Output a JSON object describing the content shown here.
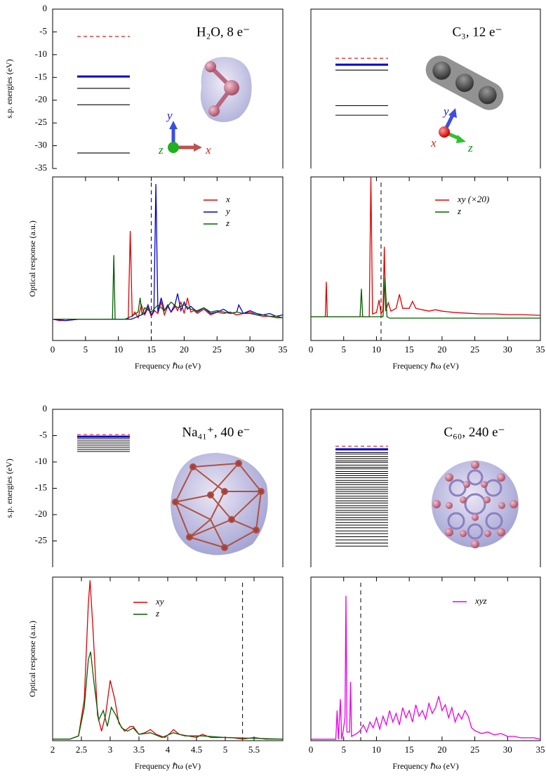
{
  "chart_data": [
    {
      "type": "levels",
      "title": "H₂O, 8 e⁻",
      "ylabel": "s.p. energies (eV)",
      "ylim": [
        -35,
        0
      ],
      "yticks": [
        0,
        -5,
        -10,
        -15,
        -20,
        -25,
        -30,
        -35
      ],
      "orientation_labels": [
        "y",
        "z",
        "x"
      ],
      "series": [
        {
          "style": "dashed",
          "color": "#e00000",
          "values": [
            -6
          ]
        },
        {
          "style": "thick",
          "color": "#0000d0",
          "values": [
            -14.8
          ]
        },
        {
          "style": "thin",
          "color": "#000000",
          "values": [
            -17.4,
            -21,
            -31.6
          ]
        }
      ]
    },
    {
      "type": "line",
      "xlabel": "Frequency ℏω (eV)",
      "ylabel": "Optical response (a.u.)",
      "xlim": [
        0,
        35
      ],
      "xticks": [
        0,
        5,
        10,
        15,
        20,
        25,
        30,
        35
      ],
      "ylim": [
        -0.15,
        1.0
      ],
      "vline": 15,
      "series": [
        {
          "name": "x",
          "color": "#e00000",
          "x": [
            0,
            1,
            2,
            4,
            6,
            8,
            10,
            11.5,
            11.8,
            12.1,
            12.5,
            13,
            13.5,
            14,
            14.5,
            15,
            15.5,
            16,
            16.5,
            17,
            17.5,
            18,
            18.5,
            19,
            19.5,
            20,
            20.5,
            21,
            21.5,
            22,
            23,
            24,
            25,
            26,
            27,
            28,
            29,
            30,
            31,
            32,
            33,
            34,
            35
          ],
          "values": [
            0,
            -0.01,
            -0.01,
            0,
            0,
            0,
            0,
            0,
            0.62,
            0.02,
            0.05,
            0.01,
            0.1,
            0.03,
            0.08,
            0.02,
            0.06,
            0.04,
            0.12,
            0.03,
            0.09,
            0.05,
            0.1,
            0.06,
            0.12,
            0.04,
            0.15,
            0.05,
            0.06,
            0.04,
            0.07,
            0.03,
            0.05,
            0.04,
            0.05,
            0.03,
            0.04,
            0.05,
            0.03,
            0.02,
            0.02,
            0.01,
            0.01
          ]
        },
        {
          "name": "y",
          "color": "#0000d0",
          "x": [
            0,
            2,
            4,
            6,
            8,
            10,
            12,
            13,
            14,
            14.5,
            15,
            15.4,
            15.7,
            16,
            16.5,
            17,
            17.5,
            18,
            18.5,
            19,
            19.5,
            20,
            20.5,
            21,
            22,
            23,
            24,
            25,
            26,
            27,
            28,
            28.3,
            29,
            30,
            31,
            32,
            33,
            34,
            35
          ],
          "values": [
            0,
            -0.01,
            0,
            0,
            0,
            0,
            0,
            0.02,
            0.04,
            0.1,
            0.03,
            0.06,
            0.95,
            0.05,
            0.15,
            0.06,
            0.1,
            0.05,
            0.08,
            0.18,
            0.06,
            0.12,
            0.07,
            0.09,
            0.05,
            0.08,
            0.04,
            0.05,
            0.07,
            0.04,
            0.05,
            0.1,
            0.04,
            0.06,
            0.04,
            0.03,
            0.04,
            0.02,
            0.03
          ]
        },
        {
          "name": "z",
          "color": "#006000",
          "x": [
            0,
            2,
            4,
            6,
            8,
            9.1,
            9.3,
            9.5,
            11,
            12,
            13,
            13.3,
            13.6,
            14,
            15,
            16,
            17,
            18,
            19,
            20,
            21,
            22,
            23,
            24,
            25,
            26,
            27,
            28,
            29,
            30,
            31,
            32,
            33,
            34,
            35
          ],
          "values": [
            0,
            0,
            0,
            0,
            0,
            0,
            0.45,
            0,
            0,
            0.02,
            0.05,
            0.15,
            0.03,
            0.08,
            0.05,
            0.1,
            0.06,
            0.12,
            0.08,
            0.1,
            0.07,
            0.06,
            0.08,
            0.05,
            0.06,
            0.05,
            0.04,
            0.05,
            0.04,
            0.04,
            0.03,
            0.03,
            0.02,
            0.02,
            0.01
          ]
        }
      ]
    },
    {
      "type": "levels",
      "title": "C₃, 12 e⁻",
      "ylim": [
        -35,
        0
      ],
      "orientation_labels": [
        "y",
        "x",
        "z"
      ],
      "series": [
        {
          "style": "dashed",
          "color": "#e00000",
          "values": [
            -10.8
          ]
        },
        {
          "style": "thick",
          "color": "#0000d0",
          "values": [
            -12.2
          ]
        },
        {
          "style": "thin",
          "color": "#000000",
          "values": [
            -13.4,
            -21.2,
            -23.3
          ]
        }
      ]
    },
    {
      "type": "line",
      "xlabel": "Frequency ℏω (eV)",
      "xlim": [
        0,
        35
      ],
      "xticks": [
        0,
        5,
        10,
        15,
        20,
        25,
        30,
        35
      ],
      "ylim": [
        -0.17,
        1.0
      ],
      "vline": 10.7,
      "series": [
        {
          "name": "xy (×20)",
          "color": "#e00000",
          "x": [
            0,
            1,
            2,
            2.2,
            2.35,
            2.5,
            4,
            6,
            8,
            8.9,
            9.15,
            9.4,
            10,
            10.4,
            10.7,
            11,
            11.2,
            11.4,
            11.8,
            12.2,
            13,
            13.5,
            14,
            15,
            15.5,
            16,
            17,
            18,
            19,
            20,
            22,
            24,
            26,
            28,
            30,
            32,
            35
          ],
          "values": [
            0,
            0,
            0,
            0,
            0.25,
            0,
            0,
            0,
            0,
            0,
            1.0,
            0.02,
            0.03,
            0.12,
            0.02,
            0.05,
            0.5,
            0.04,
            0.1,
            0.04,
            0.06,
            0.16,
            0.06,
            0.06,
            0.11,
            0.06,
            0.05,
            0.04,
            0.05,
            0.04,
            0.03,
            0.025,
            0.02,
            0.02,
            0.015,
            0.015,
            0.01
          ]
        },
        {
          "name": "z",
          "color": "#006000",
          "x": [
            0,
            7,
            7.5,
            7.7,
            7.9,
            10,
            11,
            11.3,
            11.6,
            12,
            35
          ],
          "values": [
            0,
            0,
            0,
            0.2,
            0,
            0,
            0,
            0.28,
            0,
            -0.01,
            -0.01
          ]
        }
      ]
    },
    {
      "type": "levels",
      "title": "Na₄₁⁺, 40 e⁻",
      "ylabel": "s.p. energies (eV)",
      "ylim": [
        -30,
        0
      ],
      "yticks": [
        0,
        -5,
        -10,
        -15,
        -20,
        -25
      ],
      "series": [
        {
          "style": "dashed",
          "color": "#e00000",
          "values": [
            -4.8
          ]
        },
        {
          "style": "thick",
          "color": "#0000d0",
          "values": [
            -5.2
          ]
        },
        {
          "style": "thin",
          "color": "#000000",
          "values": [
            -5.6,
            -6.0,
            -6.4,
            -6.8,
            -7.2,
            -7.6,
            -8.0
          ]
        }
      ]
    },
    {
      "type": "line",
      "xlabel": "Frequency ℏω (eV)",
      "ylabel": "Optical response (a.u.)",
      "xlim": [
        2,
        6
      ],
      "xticks": [
        2,
        2.5,
        3,
        3.5,
        4,
        4.5,
        5,
        5.5
      ],
      "ylim": [
        -0.01,
        1.02
      ],
      "vline": 5.3,
      "series": [
        {
          "name": "xy",
          "color": "#e00000",
          "x": [
            2,
            2.3,
            2.45,
            2.55,
            2.62,
            2.65,
            2.7,
            2.78,
            2.85,
            2.92,
            3.0,
            3.08,
            3.15,
            3.25,
            3.35,
            3.4,
            3.5,
            3.6,
            3.7,
            3.8,
            3.95,
            4.05,
            4.1,
            4.2,
            4.35,
            4.5,
            4.6,
            4.75,
            4.9,
            5.1,
            5.3,
            5.5,
            5.7,
            6
          ],
          "values": [
            0,
            0,
            0.02,
            0.25,
            0.85,
            1.0,
            0.7,
            0.15,
            0.05,
            0.15,
            0.37,
            0.25,
            0.1,
            0.05,
            0.08,
            0.08,
            0.03,
            0.04,
            0.06,
            0.03,
            0.01,
            0.04,
            0.06,
            0.03,
            0.02,
            0.01,
            0.03,
            0.01,
            0.01,
            0.01,
            0,
            0.01,
            0,
            0
          ]
        },
        {
          "name": "z",
          "color": "#006000",
          "x": [
            2,
            2.3,
            2.45,
            2.55,
            2.62,
            2.66,
            2.72,
            2.8,
            2.88,
            2.95,
            3.02,
            3.1,
            3.2,
            3.3,
            3.4,
            3.5,
            3.7,
            3.9,
            4.1,
            4.3,
            4.6,
            5,
            6
          ],
          "values": [
            0,
            0,
            0.02,
            0.2,
            0.5,
            0.55,
            0.35,
            0.12,
            0.18,
            0.08,
            0.2,
            0.15,
            0.07,
            0.05,
            0.07,
            0.03,
            0.04,
            0.01,
            0.04,
            0.02,
            0.02,
            0.01,
            0
          ]
        }
      ]
    },
    {
      "type": "levels",
      "title": "C₆₀, 240 e⁻",
      "ylim": [
        -30,
        0
      ],
      "series": [
        {
          "style": "dashed",
          "color": "#e00000",
          "values": [
            -7.0
          ]
        },
        {
          "style": "thick",
          "color": "#0000d0",
          "values": [
            -7.6
          ]
        },
        {
          "style": "thin",
          "color": "#000000",
          "values": [
            -8.2,
            -8.5,
            -9.0,
            -9.4,
            -9.8,
            -10.1,
            -10.6,
            -11.0,
            -11.3,
            -11.8,
            -12.2,
            -12.6,
            -13.0,
            -13.5,
            -13.9,
            -14.3,
            -14.8,
            -15.2,
            -15.6,
            -16.0,
            -16.5,
            -16.9,
            -17.4,
            -17.8,
            -18.3,
            -18.7,
            -19.2,
            -19.6,
            -20.1,
            -20.6,
            -21.0,
            -21.5,
            -22.0,
            -22.5,
            -23.1,
            -23.6,
            -24.2,
            -24.8,
            -25.4,
            -26.0
          ]
        }
      ]
    },
    {
      "type": "line",
      "xlabel": "Frequency ℏω (eV)",
      "xlim": [
        0,
        35
      ],
      "xticks": [
        0,
        5,
        10,
        15,
        20,
        25,
        30,
        35
      ],
      "ylim": [
        -0.01,
        1.13
      ],
      "vline": 7.6,
      "series": [
        {
          "name": "xyz",
          "color": "#e800e8",
          "x": [
            0,
            3,
            3.8,
            4,
            4.2,
            4.5,
            4.7,
            4.9,
            5.2,
            5.35,
            5.5,
            5.9,
            6.05,
            6.2,
            7,
            7.5,
            8,
            8.5,
            9,
            9.5,
            10,
            10.5,
            11,
            11.5,
            12,
            12.5,
            13,
            13.5,
            14,
            14.5,
            15,
            15.5,
            16,
            16.5,
            17,
            17.5,
            18,
            18.5,
            19,
            19.5,
            20,
            20.5,
            21,
            21.5,
            22,
            22.5,
            23,
            23.5,
            24,
            24.5,
            25,
            26,
            27,
            28,
            29,
            30,
            31,
            32,
            33,
            34,
            35
          ],
          "values": [
            0,
            0,
            0,
            0.2,
            0,
            0.28,
            0,
            0.05,
            0.15,
            1.0,
            0.05,
            0.05,
            0.4,
            0.02,
            0.04,
            0.06,
            0.1,
            0.05,
            0.12,
            0.08,
            0.15,
            0.07,
            0.16,
            0.1,
            0.2,
            0.12,
            0.18,
            0.1,
            0.22,
            0.15,
            0.2,
            0.12,
            0.24,
            0.16,
            0.2,
            0.14,
            0.25,
            0.18,
            0.22,
            0.3,
            0.2,
            0.24,
            0.15,
            0.22,
            0.12,
            0.18,
            0.14,
            0.2,
            0.16,
            0.08,
            0.06,
            0.04,
            0.05,
            0.03,
            0.04,
            0.02,
            0.02,
            0.01,
            0.01,
            0.01,
            0
          ]
        }
      ]
    }
  ]
}
